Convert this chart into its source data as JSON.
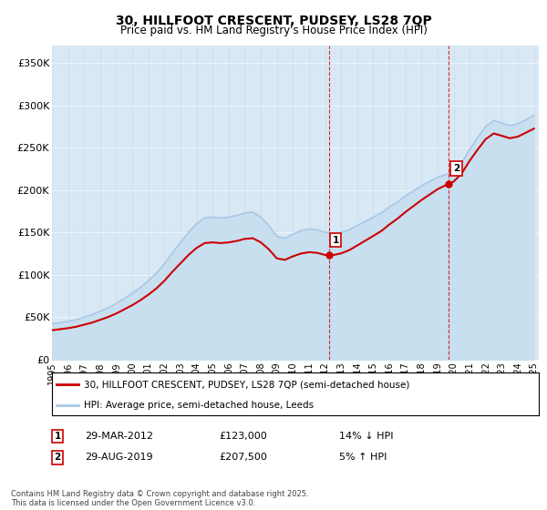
{
  "title": "30, HILLFOOT CRESCENT, PUDSEY, LS28 7QP",
  "subtitle": "Price paid vs. HM Land Registry's House Price Index (HPI)",
  "ylim": [
    0,
    370000
  ],
  "yticks": [
    0,
    50000,
    100000,
    150000,
    200000,
    250000,
    300000,
    350000
  ],
  "ytick_labels": [
    "£0",
    "£50K",
    "£100K",
    "£150K",
    "£200K",
    "£250K",
    "£300K",
    "£350K"
  ],
  "hpi_line_color": "#a8c8e8",
  "hpi_fill_color": "#c8dff0",
  "price_color": "#cc0000",
  "background_color": "#d8e8f4",
  "sale1_x": 2012.25,
  "sale1_price": 123000,
  "sale2_x": 2019.67,
  "sale2_price": 207500,
  "sale1_date": "29-MAR-2012",
  "sale1_hpi_diff": "14% ↓ HPI",
  "sale2_date": "29-AUG-2019",
  "sale2_hpi_diff": "5% ↑ HPI",
  "legend_line1": "30, HILLFOOT CRESCENT, PUDSEY, LS28 7QP (semi-detached house)",
  "legend_line2": "HPI: Average price, semi-detached house, Leeds",
  "footer": "Contains HM Land Registry data © Crown copyright and database right 2025.\nThis data is licensed under the Open Government Licence v3.0.",
  "hpi_data": {
    "years": [
      1995,
      1995.5,
      1996,
      1996.5,
      1997,
      1997.5,
      1998,
      1998.5,
      1999,
      1999.5,
      2000,
      2000.5,
      2001,
      2001.5,
      2002,
      2002.5,
      2003,
      2003.5,
      2004,
      2004.5,
      2005,
      2005.5,
      2006,
      2006.5,
      2007,
      2007.5,
      2008,
      2008.5,
      2009,
      2009.5,
      2010,
      2010.5,
      2011,
      2011.5,
      2012,
      2012.5,
      2013,
      2013.5,
      2014,
      2014.5,
      2015,
      2015.5,
      2016,
      2016.5,
      2017,
      2017.5,
      2018,
      2018.5,
      2019,
      2019.5,
      2020,
      2020.5,
      2021,
      2021.5,
      2022,
      2022.5,
      2023,
      2023.5,
      2024,
      2024.5,
      2025
    ],
    "values": [
      42000,
      43500,
      45000,
      47000,
      50000,
      53000,
      57000,
      61000,
      66000,
      72000,
      78000,
      85000,
      93000,
      102000,
      113000,
      126000,
      138000,
      150000,
      160000,
      167000,
      168000,
      167000,
      168000,
      170000,
      173000,
      174000,
      168000,
      158000,
      145000,
      143000,
      148000,
      152000,
      154000,
      153000,
      150000,
      149000,
      150000,
      153000,
      158000,
      163000,
      168000,
      173000,
      180000,
      186000,
      193000,
      199000,
      205000,
      210000,
      215000,
      218000,
      222000,
      232000,
      248000,
      262000,
      275000,
      282000,
      279000,
      276000,
      278000,
      283000,
      288000
    ]
  }
}
